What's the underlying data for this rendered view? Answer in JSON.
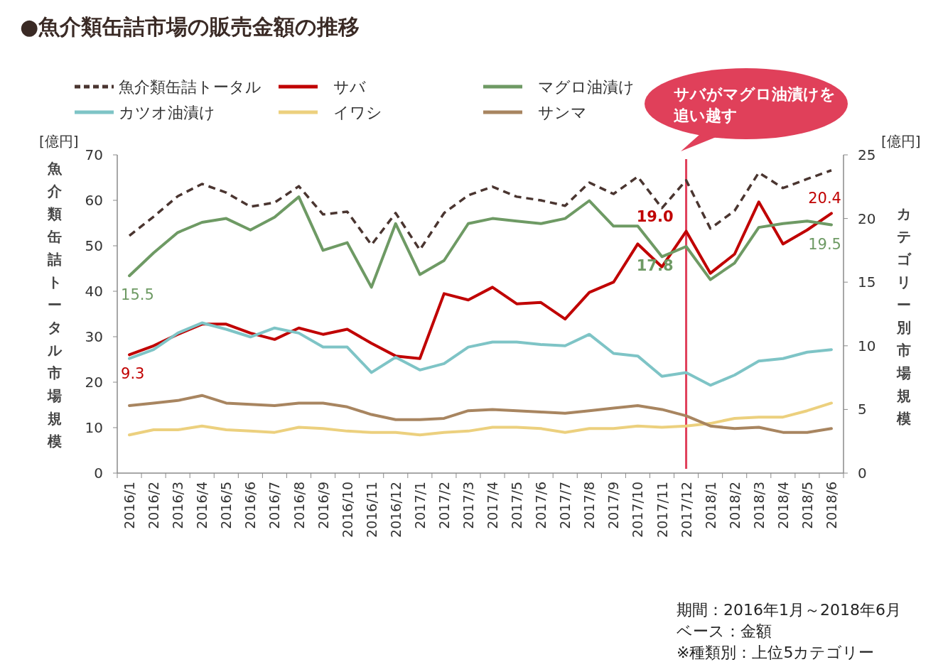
{
  "chart_data": {
    "type": "line",
    "title": "●魚介類缶詰市場の販売金額の推移",
    "ylabel": "魚介類缶詰トータル市場規模",
    "y2label": "カテゴリー別市場規模",
    "categories": [
      "2016/1",
      "2016/2",
      "2016/3",
      "2016/4",
      "2016/5",
      "2016/6",
      "2016/7",
      "2016/8",
      "2016/9",
      "2016/10",
      "2016/11",
      "2016/12",
      "2017/1",
      "2017/2",
      "2017/3",
      "2017/4",
      "2017/5",
      "2017/6",
      "2017/7",
      "2017/8",
      "2017/9",
      "2017/10",
      "2017/11",
      "2017/12",
      "2018/1",
      "2018/2",
      "2018/3",
      "2018/4",
      "2018/5",
      "2018/6"
    ],
    "series": [
      {
        "name": "魚介類缶詰トータル",
        "color": "#4a3530",
        "line_style": "dashed",
        "values": [
          52.2,
          56.4,
          60.9,
          63.6,
          61.7,
          58.6,
          59.5,
          63.1,
          56.9,
          57.5,
          50.2,
          57.2,
          49.1,
          57.2,
          61.1,
          63.0,
          60.8,
          60.0,
          58.8,
          63.9,
          61.4,
          65.2,
          58.3,
          64.4,
          53.8,
          57.7,
          66.1,
          62.7,
          64.7,
          66.6
        ]
      },
      {
        "name": "サバ",
        "color": "#c00000",
        "axis": "y2",
        "values": [
          9.3,
          10.0,
          10.9,
          11.7,
          11.7,
          11.0,
          10.5,
          11.4,
          10.9,
          11.3,
          10.2,
          9.2,
          9.0,
          14.1,
          13.6,
          14.6,
          13.3,
          13.4,
          12.1,
          14.2,
          15.0,
          18.0,
          16.2,
          19.0,
          15.7,
          17.2,
          21.3,
          18.0,
          19.1,
          20.4
        ],
        "value_labels": [
          "9.3",
          null,
          null,
          null,
          null,
          null,
          null,
          null,
          null,
          null,
          null,
          null,
          null,
          null,
          null,
          null,
          null,
          null,
          null,
          null,
          null,
          null,
          null,
          "19.0",
          null,
          null,
          null,
          null,
          null,
          "20.4"
        ]
      },
      {
        "name": "マグロ油漬け",
        "color": "#6e9a64",
        "axis": "y2",
        "values": [
          15.5,
          17.3,
          18.9,
          19.7,
          20.0,
          19.1,
          20.1,
          21.7,
          17.5,
          18.1,
          14.6,
          19.6,
          15.6,
          16.7,
          19.6,
          20.0,
          19.8,
          19.6,
          20.0,
          21.4,
          19.4,
          19.4,
          17.0,
          17.8,
          15.2,
          16.5,
          19.3,
          19.6,
          19.8,
          19.5
        ],
        "value_labels": [
          "15.5",
          null,
          null,
          null,
          null,
          null,
          null,
          null,
          null,
          null,
          null,
          null,
          null,
          null,
          null,
          null,
          null,
          null,
          null,
          null,
          null,
          null,
          null,
          "17.8",
          null,
          null,
          null,
          null,
          null,
          "19.5"
        ]
      },
      {
        "name": "カツオ油漬け",
        "color": "#7ec4c6",
        "axis": "y2",
        "values": [
          9.0,
          9.7,
          11.0,
          11.8,
          11.3,
          10.7,
          11.4,
          11.0,
          9.9,
          9.9,
          7.9,
          9.1,
          8.1,
          8.6,
          9.9,
          10.3,
          10.3,
          10.1,
          10.0,
          10.9,
          9.4,
          9.2,
          7.6,
          7.9,
          6.9,
          7.7,
          8.8,
          9.0,
          9.5,
          9.7
        ]
      },
      {
        "name": "イワシ",
        "color": "#ecd07e",
        "axis": "y2",
        "values": [
          3.0,
          3.4,
          3.4,
          3.7,
          3.4,
          3.3,
          3.2,
          3.6,
          3.5,
          3.3,
          3.2,
          3.2,
          3.0,
          3.2,
          3.3,
          3.6,
          3.6,
          3.5,
          3.2,
          3.5,
          3.5,
          3.7,
          3.6,
          3.7,
          3.9,
          4.3,
          4.4,
          4.4,
          4.9,
          5.5
        ]
      },
      {
        "name": "サンマ",
        "color": "#a88560",
        "axis": "y2",
        "values": [
          5.3,
          5.5,
          5.7,
          6.1,
          5.5,
          5.4,
          5.3,
          5.5,
          5.5,
          5.2,
          4.6,
          4.2,
          4.2,
          4.3,
          4.9,
          5.0,
          4.9,
          4.8,
          4.7,
          4.9,
          5.1,
          5.3,
          5.0,
          4.5,
          3.7,
          3.5,
          3.6,
          3.2,
          3.2,
          3.5
        ]
      }
    ],
    "ylim": [
      0,
      70
    ],
    "yticks": [
      0,
      10,
      20,
      30,
      40,
      50,
      60,
      70
    ],
    "y2lim": [
      0,
      25
    ],
    "y2ticks": [
      0,
      5,
      10,
      15,
      20,
      25
    ],
    "ref_lines": [
      {
        "axis": "x",
        "value": "2017/12",
        "label": "サバがマグロ油漬けを追い越す",
        "color": "#e0405a"
      }
    ],
    "annotations": [
      "[億円]",
      "[億円]",
      "期間：2016年1月～2018年6月",
      "ベース：金額",
      "※種類別：上位5カテゴリー"
    ],
    "legend": "top",
    "grid": false
  }
}
